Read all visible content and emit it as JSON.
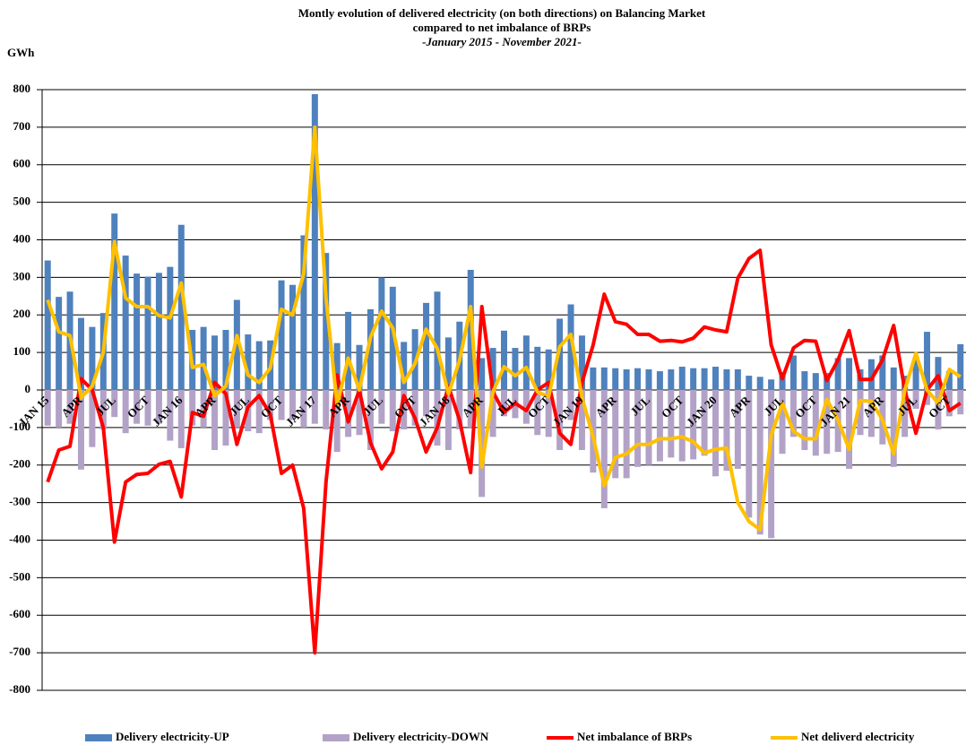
{
  "chart_data": {
    "type": "bar-line",
    "title": [
      "Montly evolution of delivered electricity (on both directions) on Balancing Market",
      "compared to net imbalance of BRPs"
    ],
    "subtitle": "-January 2015 - November 2021-",
    "ylabel": "GWh",
    "categories": [
      "JAN 15",
      null,
      null,
      "APR",
      null,
      null,
      "JUL",
      null,
      null,
      "OCT",
      null,
      null,
      "JAN 16",
      null,
      null,
      "APR",
      null,
      null,
      "JUL",
      null,
      null,
      "OCT",
      null,
      null,
      "JAN 17",
      null,
      null,
      "APR",
      null,
      null,
      "JUL",
      null,
      null,
      "OCT",
      null,
      null,
      "JAN 18",
      null,
      null,
      "APR",
      null,
      null,
      "JUL",
      null,
      null,
      "OCT",
      null,
      null,
      "JAN 19",
      null,
      null,
      "APR",
      null,
      null,
      "JUL",
      null,
      null,
      "OCT",
      null,
      null,
      "JAN 20",
      null,
      null,
      "APR",
      null,
      null,
      "JUL",
      null,
      null,
      "OCT",
      null,
      null,
      "JAN 21",
      null,
      null,
      "APR",
      null,
      null,
      "JUL",
      null,
      null,
      "OCT",
      null
    ],
    "series": [
      {
        "name": "Delivery electricity-UP",
        "kind": "bar",
        "color": "#4f81bd",
        "values": [
          345,
          248,
          262,
          192,
          168,
          205,
          470,
          358,
          310,
          302,
          312,
          328,
          440,
          160,
          168,
          145,
          160,
          240,
          148,
          130,
          132,
          292,
          280,
          412,
          788,
          365,
          125,
          208,
          120,
          215,
          300,
          275,
          128,
          162,
          232,
          262,
          140,
          182,
          320,
          85,
          112,
          158,
          112,
          145,
          115,
          108,
          190,
          228,
          145,
          60,
          60,
          58,
          55,
          58,
          55,
          50,
          55,
          62,
          58,
          58,
          62,
          55,
          55,
          38,
          35,
          28,
          48,
          92,
          50,
          45,
          45,
          85,
          85,
          55,
          82,
          92,
          60,
          38,
          88,
          155,
          88,
          50,
          122
        ]
      },
      {
        "name": "Delivery electricity-DOWN",
        "kind": "bar",
        "color": "#b3a2c7",
        "values": [
          -95,
          -100,
          -90,
          -212,
          -152,
          -105,
          -72,
          -115,
          -90,
          -95,
          -90,
          -135,
          -155,
          -95,
          -100,
          -160,
          -148,
          -100,
          -110,
          -115,
          -80,
          -80,
          -80,
          -100,
          -90,
          -105,
          -165,
          -125,
          -120,
          -160,
          -90,
          -110,
          -105,
          -95,
          -70,
          -148,
          -160,
          -105,
          -100,
          -285,
          -125,
          -70,
          -75,
          -90,
          -120,
          -125,
          -160,
          -80,
          -160,
          -220,
          -315,
          -235,
          -235,
          -205,
          -200,
          -190,
          -180,
          -190,
          -185,
          -175,
          -230,
          -215,
          -210,
          -340,
          -385,
          -395,
          -170,
          -125,
          -160,
          -175,
          -170,
          -165,
          -210,
          -120,
          -125,
          -145,
          -205,
          -125,
          -50,
          -40,
          -105,
          -70,
          -65
        ]
      },
      {
        "name": "Net imbalance of BRPs",
        "kind": "line",
        "color": "#ff0000",
        "values": [
          -245,
          -160,
          -150,
          30,
          0,
          -100,
          -405,
          -245,
          -225,
          -222,
          -198,
          -190,
          -285,
          -60,
          -70,
          20,
          -10,
          -145,
          -45,
          -15,
          -65,
          -222,
          -200,
          -315,
          -700,
          -245,
          40,
          -85,
          0,
          -140,
          -210,
          -165,
          -15,
          -75,
          -165,
          -100,
          10,
          -80,
          -220,
          222,
          -5,
          -60,
          -35,
          -55,
          0,
          20,
          -115,
          -145,
          20,
          120,
          255,
          182,
          175,
          148,
          148,
          130,
          132,
          128,
          138,
          168,
          160,
          155,
          298,
          350,
          372,
          120,
          30,
          112,
          132,
          130,
          25,
          80,
          158,
          28,
          28,
          80,
          172,
          0,
          -115,
          0,
          38,
          -55,
          -35
        ]
      },
      {
        "name": "Net deliverd electricity",
        "kind": "line",
        "color": "#ffc000",
        "values": [
          240,
          155,
          145,
          -20,
          10,
          100,
          395,
          245,
          222,
          222,
          198,
          192,
          285,
          60,
          68,
          -15,
          10,
          145,
          40,
          20,
          58,
          215,
          200,
          310,
          700,
          245,
          -40,
          85,
          0,
          140,
          210,
          165,
          20,
          70,
          162,
          110,
          -10,
          78,
          222,
          -205,
          -5,
          62,
          38,
          60,
          -5,
          -18,
          115,
          148,
          -20,
          -125,
          -255,
          -180,
          -170,
          -145,
          -145,
          -130,
          -130,
          -125,
          -138,
          -168,
          -158,
          -155,
          -300,
          -350,
          -372,
          -120,
          -35,
          -110,
          -130,
          -130,
          -25,
          -80,
          -158,
          -28,
          -30,
          -80,
          -170,
          0,
          98,
          0,
          -35,
          55,
          35
        ]
      }
    ],
    "ylim": [
      -800,
      800
    ],
    "yticks": [
      -800,
      -700,
      -600,
      -500,
      -400,
      -300,
      -200,
      -100,
      0,
      100,
      200,
      300,
      400,
      500,
      600,
      700,
      800
    ],
    "grid": true
  }
}
